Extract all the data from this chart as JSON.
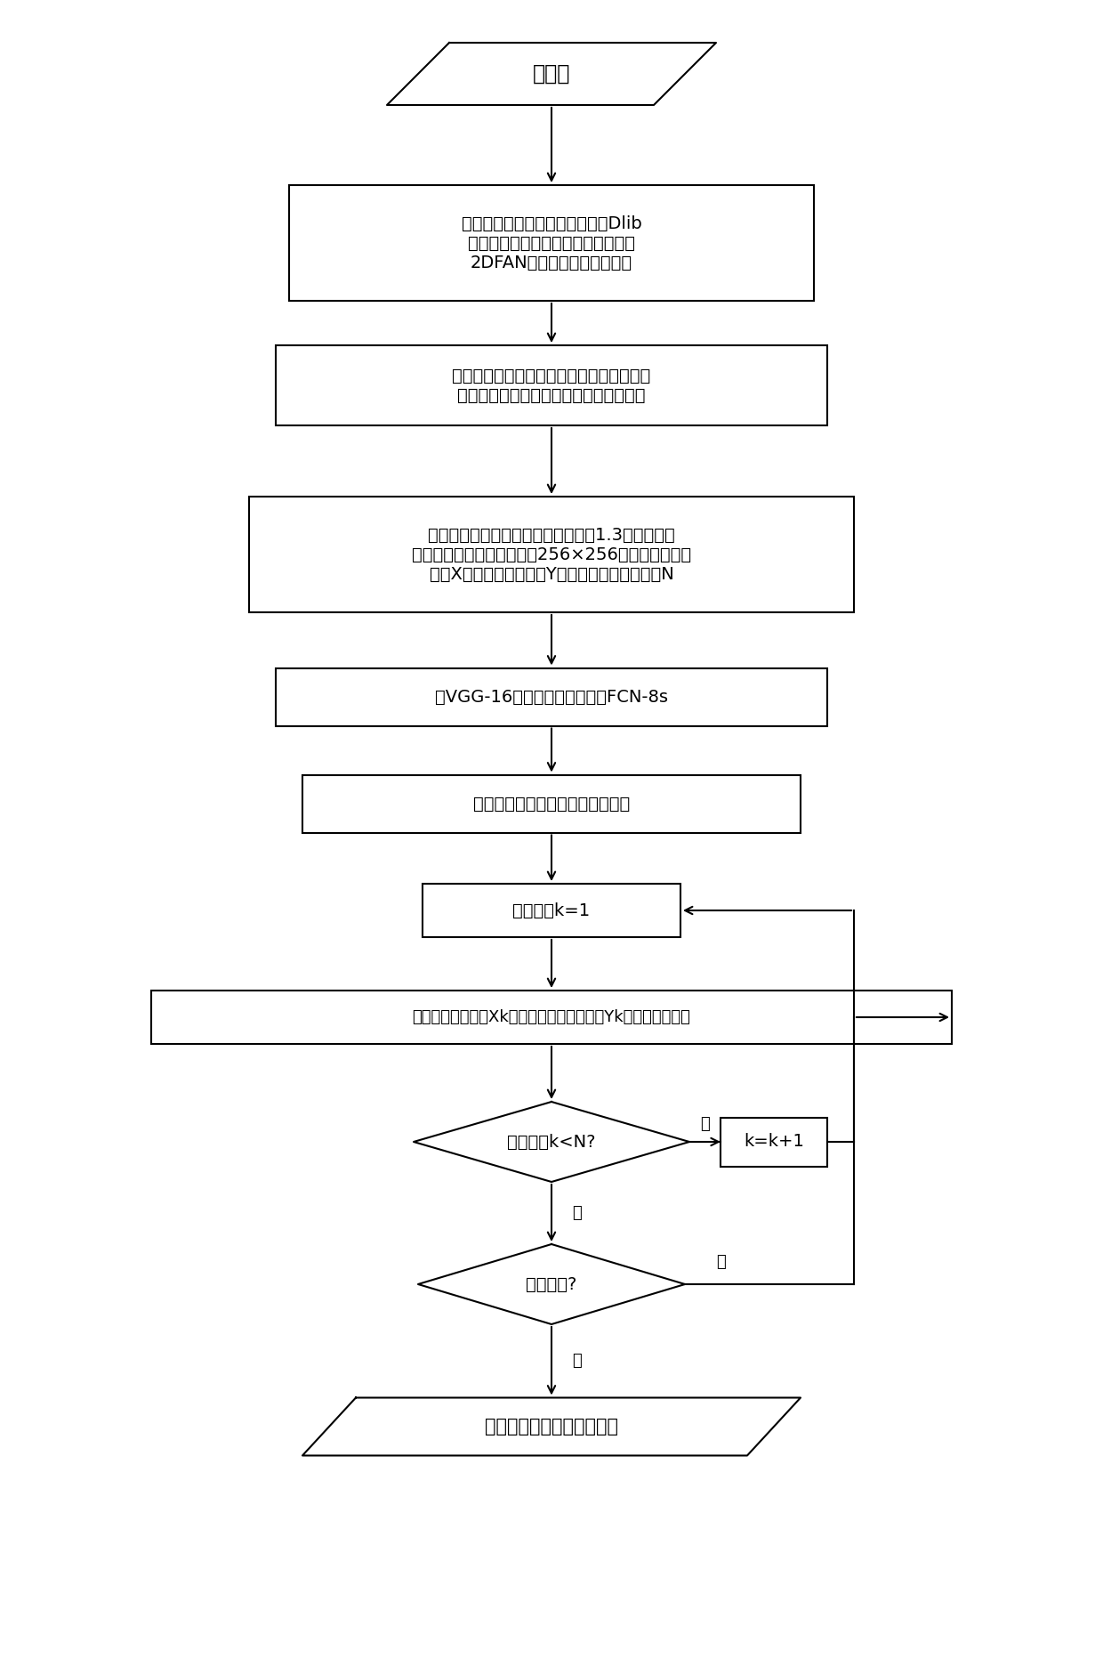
{
  "background_color": "#ffffff",
  "nodes": {
    "start": {
      "text": "训练集",
      "type": "parallelogram"
    },
    "preprocess": {
      "text": "对每一视频帧进行预处理，使用Dlib\n库中的卷积神经网络选取脸部框，用\n2DFAN网络对标志点进行检测",
      "type": "rectangle"
    },
    "nose": {
      "text": "根据鼻尖点位置，水平平移，矫正人脸框，\n以保证鼻尖点位于人脸框的垂直中心线上",
      "type": "rectangle"
    },
    "crop": {
      "text": "在视频帧和对应的正确掩模上，裁剪1.3倍人脸区域\n的图片，并三次插值采样到256×256，得到训练集图\n片集X和正确掩模图片集Y，集合中图片数量都为N",
      "type": "rectangle"
    },
    "vgg": {
      "text": "以VGG-16为骨架搭建分割网络FCN-8s",
      "type": "rectangle"
    },
    "loss": {
      "text": "设置分割网络损失函数和优化算法",
      "type": "rectangle"
    },
    "init_k": {
      "text": "图片序号k=1",
      "type": "rectangle"
    },
    "train": {
      "text": "输入为训练集图片Xk，标签为正确掩模图片Yk，训练分割网络",
      "type": "rectangle"
    },
    "check_k": {
      "text": "图片序号k<N?",
      "type": "diamond"
    },
    "incr_k": {
      "text": "k=k+1",
      "type": "rectangle"
    },
    "check_done": {
      "text": "训练完成?",
      "type": "diamond"
    },
    "save": {
      "text": "保存分割网络模型和权重值",
      "type": "parallelogram"
    }
  },
  "label_yes": "是",
  "label_no": "否"
}
